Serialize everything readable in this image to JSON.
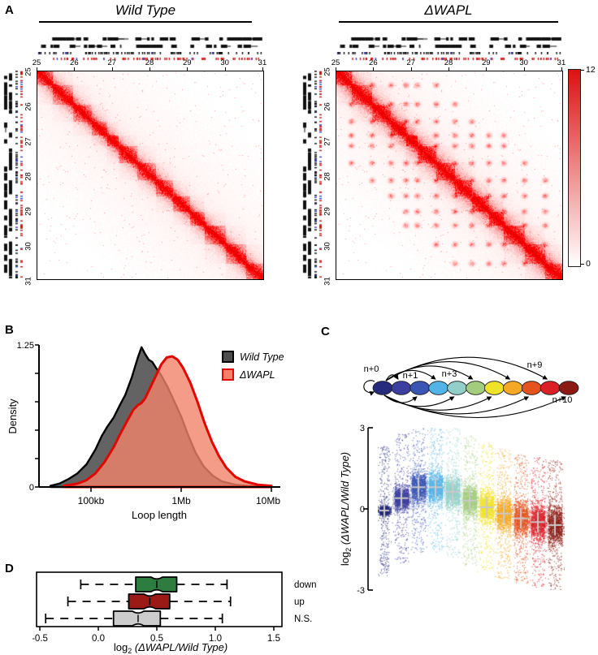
{
  "panel_a": {
    "label": "A",
    "maps": [
      {
        "title": "Wild Type"
      },
      {
        "title": "ΔWAPL"
      }
    ],
    "axis_ticks": [
      "25",
      "26",
      "27",
      "28",
      "29",
      "30",
      "31"
    ],
    "colorbar": {
      "max": "12",
      "min": "0",
      "top_color": "#dd1111",
      "bottom_color": "#ffffff"
    }
  },
  "panel_b": {
    "label": "B",
    "ylabel": "Density",
    "xlabel": "Loop length",
    "y_tick_labels": [
      "1.25",
      "0"
    ],
    "x_tick_labels": [
      "100kb",
      "1Mb",
      "10Mb"
    ],
    "legend": [
      {
        "label": "Wild Type",
        "fill": "#4d4d4d",
        "stroke": "#000000"
      },
      {
        "label": "ΔWAPL",
        "fill": "#f2836b",
        "stroke": "#e10600"
      }
    ]
  },
  "panel_c": {
    "label": "C",
    "diagram": {
      "node_colors": [
        "#262b7e",
        "#3c3f9f",
        "#3a55b4",
        "#52b4e6",
        "#93cfc9",
        "#a3cc7d",
        "#efe32a",
        "#f5a823",
        "#e5521d",
        "#da1f26",
        "#8a1a13"
      ],
      "labels": {
        "n0": "n+0",
        "n1": "n+1",
        "n3": "n+3",
        "n9": "n+9",
        "n10": "n+10"
      }
    },
    "ylabel": {
      "log": "log",
      "sub": "2",
      "open": " (",
      "italic": "ΔWAPL/Wild Type",
      "close": ")"
    },
    "y_ticks": [
      "3",
      "0",
      "-3"
    ]
  },
  "panel_d": {
    "label": "D",
    "xlabel": {
      "log": "log",
      "sub": "2",
      "open": " (",
      "italic": "ΔWAPL/Wild Type",
      "close": ")"
    },
    "x_ticks": [
      "-0.5",
      "0.0",
      "0.5",
      "1.0",
      "1.5"
    ]
  },
  "chart_data": [
    {
      "type": "heatmap",
      "name": "hic_wild_type",
      "title": "Wild Type",
      "region_mb": [
        25,
        31
      ],
      "axis_ticks_mb": [
        25,
        26,
        27,
        28,
        29,
        30,
        31
      ],
      "tad_boundaries_mb": [
        25.0,
        25.4,
        25.95,
        26.45,
        26.85,
        27.15,
        27.65,
        28.15,
        28.6,
        29.05,
        29.45,
        30.0,
        30.55,
        31.0
      ],
      "colorbar_range": [
        0,
        12
      ],
      "corner_peaks": false
    },
    {
      "type": "heatmap",
      "name": "hic_delta_wapl",
      "title": "ΔWAPL",
      "region_mb": [
        25,
        31
      ],
      "axis_ticks_mb": [
        25,
        26,
        27,
        28,
        29,
        30,
        31
      ],
      "tad_boundaries_mb": [
        25.0,
        25.4,
        25.95,
        26.45,
        26.85,
        27.15,
        27.65,
        28.15,
        28.6,
        29.05,
        29.45,
        30.0,
        30.55,
        31.0
      ],
      "colorbar_range": [
        0,
        12
      ],
      "corner_peaks": true
    },
    {
      "type": "area",
      "name": "loop_length_density",
      "xlabel": "Loop length",
      "ylabel": "Density",
      "x_scale": "log10_bp",
      "x_ticks": [
        {
          "value": 5,
          "label": "100kb"
        },
        {
          "value": 6,
          "label": "1Mb"
        },
        {
          "value": 7,
          "label": "10Mb"
        }
      ],
      "ylim": [
        0,
        1.25
      ],
      "y_ticks": [
        0,
        0.25,
        0.5,
        0.75,
        1.0,
        1.25
      ],
      "series": [
        {
          "name": "Wild Type",
          "fill": "#4d4d4d",
          "stroke": "#000000",
          "points": [
            [
              4.55,
              0.01
            ],
            [
              4.65,
              0.03
            ],
            [
              4.75,
              0.07
            ],
            [
              4.85,
              0.12
            ],
            [
              4.95,
              0.2
            ],
            [
              5.05,
              0.33
            ],
            [
              5.12,
              0.45
            ],
            [
              5.18,
              0.53
            ],
            [
              5.25,
              0.61
            ],
            [
              5.32,
              0.72
            ],
            [
              5.38,
              0.81
            ],
            [
              5.45,
              0.96
            ],
            [
              5.52,
              1.14
            ],
            [
              5.56,
              1.23
            ],
            [
              5.6,
              1.17
            ],
            [
              5.64,
              1.12
            ],
            [
              5.68,
              1.1
            ],
            [
              5.72,
              1.05
            ],
            [
              5.78,
              0.98
            ],
            [
              5.85,
              0.88
            ],
            [
              5.92,
              0.76
            ],
            [
              6.0,
              0.62
            ],
            [
              6.08,
              0.45
            ],
            [
              6.16,
              0.3
            ],
            [
              6.25,
              0.18
            ],
            [
              6.35,
              0.1
            ],
            [
              6.45,
              0.05
            ],
            [
              6.6,
              0.02
            ],
            [
              6.75,
              0.01
            ],
            [
              6.9,
              0.005
            ]
          ]
        },
        {
          "name": "ΔWAPL",
          "fill": "#f2836b",
          "stroke": "#e10600",
          "points": [
            [
              4.7,
              0.01
            ],
            [
              4.85,
              0.03
            ],
            [
              4.95,
              0.06
            ],
            [
              5.05,
              0.12
            ],
            [
              5.15,
              0.22
            ],
            [
              5.25,
              0.35
            ],
            [
              5.32,
              0.46
            ],
            [
              5.4,
              0.58
            ],
            [
              5.47,
              0.68
            ],
            [
              5.52,
              0.72
            ],
            [
              5.56,
              0.74
            ],
            [
              5.6,
              0.78
            ],
            [
              5.66,
              0.88
            ],
            [
              5.72,
              0.98
            ],
            [
              5.78,
              1.08
            ],
            [
              5.84,
              1.14
            ],
            [
              5.9,
              1.15
            ],
            [
              5.96,
              1.12
            ],
            [
              6.02,
              1.05
            ],
            [
              6.1,
              0.92
            ],
            [
              6.18,
              0.75
            ],
            [
              6.26,
              0.56
            ],
            [
              6.34,
              0.4
            ],
            [
              6.42,
              0.27
            ],
            [
              6.5,
              0.17
            ],
            [
              6.6,
              0.09
            ],
            [
              6.7,
              0.05
            ],
            [
              6.85,
              0.02
            ],
            [
              7.0,
              0.01
            ]
          ]
        }
      ]
    },
    {
      "type": "scatter",
      "name": "anchor_shift_jitter",
      "ylabel": "log2 (ΔWAPL/Wild Type)",
      "ylim": [
        -3,
        3
      ],
      "y_ticks": [
        3,
        0,
        -3
      ],
      "groups": [
        {
          "name": "n+0",
          "color": "#262b7e",
          "mean": -0.06,
          "sd": 0.16
        },
        {
          "name": "n+1",
          "color": "#3c3f9f",
          "mean": 0.4,
          "sd": 0.42
        },
        {
          "name": "n+2",
          "color": "#3a55b4",
          "mean": 0.8,
          "sd": 0.55
        },
        {
          "name": "n+3",
          "color": "#52b4e6",
          "mean": 0.8,
          "sd": 0.55
        },
        {
          "name": "n+4",
          "color": "#93cfc9",
          "mean": 0.63,
          "sd": 0.55
        },
        {
          "name": "n+5",
          "color": "#a3cc7d",
          "mean": 0.31,
          "sd": 0.55
        },
        {
          "name": "n+6",
          "color": "#efe32a",
          "mean": 0.06,
          "sd": 0.58
        },
        {
          "name": "n+7",
          "color": "#f5a823",
          "mean": -0.17,
          "sd": 0.6
        },
        {
          "name": "n+8",
          "color": "#e5521d",
          "mean": -0.35,
          "sd": 0.62
        },
        {
          "name": "n+9",
          "color": "#da1f26",
          "mean": -0.49,
          "sd": 0.65
        },
        {
          "name": "n+10",
          "color": "#8a1a13",
          "mean": -0.6,
          "sd": 0.68
        }
      ]
    },
    {
      "type": "box",
      "name": "loop_class_boxplot",
      "xlabel": "log2 (ΔWAPL/Wild Type)",
      "xlim": [
        -0.5,
        1.5
      ],
      "x_ticks": [
        -0.5,
        0.0,
        0.5,
        1.0,
        1.5
      ],
      "boxes": [
        {
          "label": "down",
          "color": "#2e7d40",
          "whisker_lo": -0.15,
          "q1": 0.32,
          "median": 0.5,
          "q3": 0.67,
          "whisker_hi": 1.1
        },
        {
          "label": "up",
          "color": "#9c1a15",
          "whisker_lo": -0.26,
          "q1": 0.26,
          "median": 0.44,
          "q3": 0.61,
          "whisker_hi": 1.13
        },
        {
          "label": "N.S.",
          "color": "#cccccc",
          "whisker_lo": -0.45,
          "q1": 0.13,
          "median": 0.34,
          "q3": 0.53,
          "whisker_hi": 1.06
        }
      ]
    }
  ]
}
